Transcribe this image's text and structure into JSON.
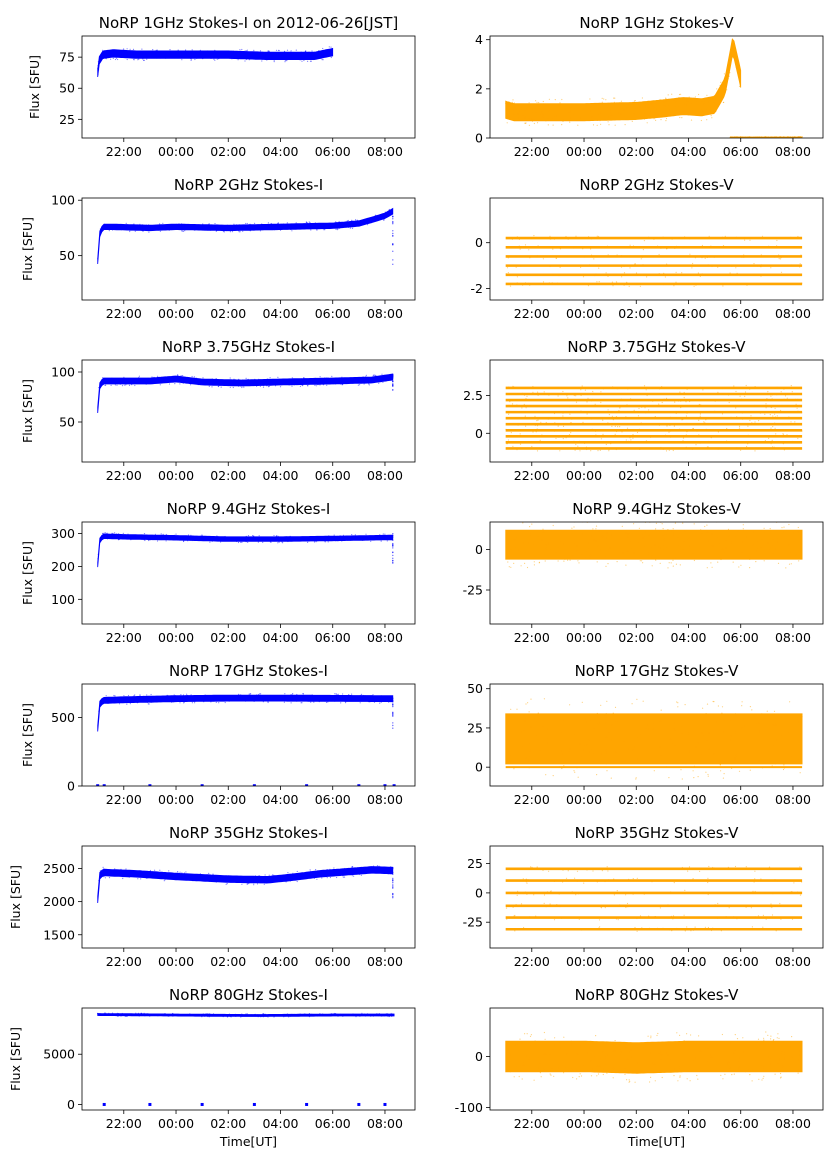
{
  "figure": {
    "x_ticks": [
      "22:00",
      "00:00",
      "02:00",
      "04:00",
      "06:00",
      "08:00"
    ],
    "x_tick_hours": [
      22,
      24,
      26,
      28,
      30,
      32
    ],
    "x_range_hours": [
      20.4,
      33.15
    ],
    "data_start_hours": 21.0,
    "data_end_hours": 32.35,
    "xlabel": "Time[UT]",
    "ylabel": "Flux [SFU]",
    "colors": {
      "stokes_i": "#0000ff",
      "stokes_v": "#ffa500"
    }
  },
  "chart_data": [
    {
      "type": "scatter",
      "title": "NoRP 1GHz Stokes-I on 2012-06-26[JST]",
      "stokes": "I",
      "ylabel": "Flux [SFU]",
      "xlabel": "",
      "ylim": [
        10,
        92
      ],
      "yticks": [
        25,
        50,
        75
      ],
      "series": [
        {
          "name": "1GHz Stokes-I",
          "x_hours": [
            21.0,
            21.05,
            21.2,
            21.6,
            22.5,
            24.0,
            26.0,
            27.5,
            28.5,
            29.3,
            29.75,
            30.0
          ],
          "y": [
            62,
            72,
            77,
            78,
            77,
            77,
            77,
            76,
            76,
            76,
            78,
            79
          ],
          "band": 3
        }
      ]
    },
    {
      "type": "scatter",
      "title": "NoRP 1GHz Stokes-V",
      "stokes": "V",
      "ylabel": "",
      "xlabel": "",
      "ylim": [
        0,
        4.15
      ],
      "yticks": [
        0,
        2,
        4
      ],
      "series": [
        {
          "name": "1GHz Stokes-V",
          "x_hours": [
            21.0,
            21.3,
            22.5,
            24.0,
            26.0,
            27.0,
            27.8,
            28.5,
            29.0,
            29.4,
            29.7,
            29.85,
            30.0
          ],
          "y": [
            1.15,
            1.05,
            1.05,
            1.05,
            1.1,
            1.2,
            1.3,
            1.25,
            1.35,
            2.1,
            3.8,
            3.1,
            2.4
          ],
          "band": 0.35
        },
        {
          "name": "1GHz Stokes-V baseline",
          "x_hours": [
            29.6,
            32.35
          ],
          "y": [
            0.02,
            0.02
          ],
          "band": 0.02
        }
      ]
    },
    {
      "type": "scatter",
      "title": "NoRP 2GHz Stokes-I",
      "stokes": "I",
      "ylabel": "Flux [SFU]",
      "xlabel": "",
      "ylim": [
        10,
        102
      ],
      "yticks": [
        50,
        100
      ],
      "series": [
        {
          "name": "2GHz Stokes-I",
          "x_hours": [
            21.0,
            21.05,
            21.2,
            21.5,
            23.0,
            24.0,
            26.0,
            28.0,
            30.0,
            31.0,
            31.6,
            32.0,
            32.3
          ],
          "y": [
            45,
            68,
            76,
            76,
            75,
            76,
            75,
            76,
            77,
            79,
            83,
            86,
            90
          ],
          "band": 2.5
        }
      ],
      "dropouts": [
        {
          "x_hours": 32.3,
          "y_min": 40,
          "y_max": 88
        }
      ]
    },
    {
      "type": "scatter",
      "title": "NoRP 2GHz Stokes-V",
      "stokes": "V",
      "ylabel": "",
      "xlabel": "",
      "ylim": [
        -2.5,
        1.95
      ],
      "yticks": [
        -2,
        0
      ],
      "levels": [
        0.2,
        -0.2,
        -0.6,
        -1.0,
        -1.4,
        -1.8
      ],
      "level_range_hours": [
        21.0,
        32.35
      ]
    },
    {
      "type": "scatter",
      "title": "NoRP 3.75GHz Stokes-I",
      "stokes": "I",
      "ylabel": "Flux [SFU]",
      "xlabel": "",
      "ylim": [
        10,
        112
      ],
      "yticks": [
        50,
        100
      ],
      "series": [
        {
          "name": "3.75GHz Stokes-I",
          "x_hours": [
            21.0,
            21.05,
            21.2,
            22.0,
            23.0,
            24.0,
            25.0,
            26.5,
            28.0,
            30.0,
            31.5,
            32.3
          ],
          "y": [
            62,
            85,
            91,
            91,
            91,
            93,
            90,
            89,
            90,
            91,
            92,
            95
          ],
          "band": 3
        }
      ],
      "dropouts": [
        {
          "x_hours": 32.3,
          "y_min": 78,
          "y_max": 98
        }
      ]
    },
    {
      "type": "scatter",
      "title": "NoRP 3.75GHz Stokes-V",
      "stokes": "V",
      "ylabel": "",
      "xlabel": "",
      "ylim": [
        -1.9,
        4.85
      ],
      "yticks": [
        0.0,
        2.5
      ],
      "levels": [
        3.0,
        2.6,
        2.2,
        1.8,
        1.4,
        1.0,
        0.6,
        0.2,
        -0.2,
        -0.6,
        -1.0
      ],
      "level_range_hours": [
        21.0,
        32.35
      ]
    },
    {
      "type": "scatter",
      "title": "NoRP 9.4GHz Stokes-I",
      "stokes": "I",
      "ylabel": "Flux [SFU]",
      "xlabel": "",
      "ylim": [
        25,
        335
      ],
      "yticks": [
        100,
        200,
        300
      ],
      "series": [
        {
          "name": "9.4GHz Stokes-I",
          "x_hours": [
            21.0,
            21.05,
            21.2,
            22.0,
            24.0,
            26.0,
            28.0,
            30.0,
            32.3
          ],
          "y": [
            205,
            275,
            292,
            290,
            287,
            283,
            283,
            285,
            288
          ],
          "band": 7
        }
      ],
      "dropouts": [
        {
          "x_hours": 32.3,
          "y_min": 210,
          "y_max": 300
        }
      ]
    },
    {
      "type": "scatter",
      "title": "NoRP 9.4GHz Stokes-V",
      "stokes": "V",
      "ylabel": "",
      "xlabel": "",
      "ylim": [
        -46,
        17
      ],
      "yticks": [
        -25,
        0
      ],
      "series": [
        {
          "name": "9.4GHz Stokes-V",
          "x_hours": [
            21.0,
            32.35
          ],
          "y": [
            3,
            3
          ],
          "band": 9
        }
      ]
    },
    {
      "type": "scatter",
      "title": "NoRP 17GHz Stokes-I",
      "stokes": "I",
      "ylabel": "Flux [SFU]",
      "xlabel": "",
      "ylim": [
        0,
        745
      ],
      "yticks": [
        0,
        500
      ],
      "series": [
        {
          "name": "17GHz Stokes-I",
          "x_hours": [
            21.0,
            21.05,
            21.2,
            22.0,
            24.0,
            26.0,
            28.0,
            30.0,
            32.3
          ],
          "y": [
            420,
            590,
            625,
            630,
            638,
            642,
            642,
            640,
            638
          ],
          "band": 22
        }
      ],
      "dropouts": [
        {
          "x_hours": 32.3,
          "y_min": 420,
          "y_max": 650
        }
      ],
      "dots": {
        "x_hours": [
          21.0,
          21.25,
          23.0,
          25.0,
          27.0,
          29.0,
          31.0,
          32.0,
          32.35
        ],
        "y": 2
      }
    },
    {
      "type": "scatter",
      "title": "NoRP 17GHz Stokes-V",
      "stokes": "V",
      "ylabel": "",
      "xlabel": "",
      "ylim": [
        -12,
        53
      ],
      "yticks": [
        0,
        25,
        50
      ],
      "series": [
        {
          "name": "17GHz Stokes-V",
          "x_hours": [
            21.0,
            32.35
          ],
          "y": [
            18,
            18
          ],
          "band": 16
        }
      ],
      "baseline": 0
    },
    {
      "type": "scatter",
      "title": "NoRP 35GHz Stokes-I",
      "stokes": "I",
      "ylabel": "Flux [SFU]",
      "xlabel": "",
      "ylim": [
        1300,
        2840
      ],
      "yticks": [
        1500,
        2000,
        2500
      ],
      "series": [
        {
          "name": "35GHz Stokes-I",
          "x_hours": [
            21.0,
            21.05,
            21.2,
            22.5,
            24.0,
            26.0,
            27.5,
            28.5,
            29.5,
            30.5,
            31.5,
            32.3
          ],
          "y": [
            2030,
            2380,
            2440,
            2420,
            2380,
            2340,
            2330,
            2370,
            2420,
            2450,
            2480,
            2470
          ],
          "band": 50
        }
      ],
      "dropouts": [
        {
          "x_hours": 32.3,
          "y_min": 2050,
          "y_max": 2550
        }
      ]
    },
    {
      "type": "scatter",
      "title": "NoRP 35GHz Stokes-V",
      "stokes": "V",
      "ylabel": "",
      "xlabel": "",
      "ylim": [
        -47,
        40
      ],
      "yticks": [
        -25,
        0,
        25
      ],
      "levels": [
        20.5,
        10.5,
        0,
        -11,
        -21,
        -31
      ],
      "level_range_hours": [
        21.0,
        32.35
      ]
    },
    {
      "type": "scatter",
      "title": "NoRP 80GHz Stokes-I",
      "stokes": "I",
      "ylabel": "Flux [SFU]",
      "xlabel": "Time[UT]",
      "ylim": [
        -550,
        9600
      ],
      "yticks": [
        0,
        5000
      ],
      "series": [
        {
          "name": "80GHz Stokes-I",
          "x_hours": [
            21.0,
            24.0,
            27.0,
            30.0,
            32.35
          ],
          "y": [
            8950,
            8900,
            8850,
            8900,
            8900
          ],
          "band": 100
        }
      ],
      "dots": {
        "x_hours": [
          21.25,
          23.0,
          25.0,
          27.0,
          29.0,
          31.0,
          32.0
        ],
        "y": 0
      }
    },
    {
      "type": "scatter",
      "title": "NoRP 80GHz Stokes-V",
      "stokes": "V",
      "ylabel": "",
      "xlabel": "Time[UT]",
      "ylim": [
        -105,
        95
      ],
      "yticks": [
        -100,
        0
      ],
      "series": [
        {
          "name": "80GHz Stokes-V",
          "x_hours": [
            21.0,
            24.0,
            26.0,
            28.0,
            30.0,
            32.35
          ],
          "y": [
            0,
            0,
            -3,
            0,
            0,
            0
          ],
          "band": 30
        }
      ]
    }
  ]
}
